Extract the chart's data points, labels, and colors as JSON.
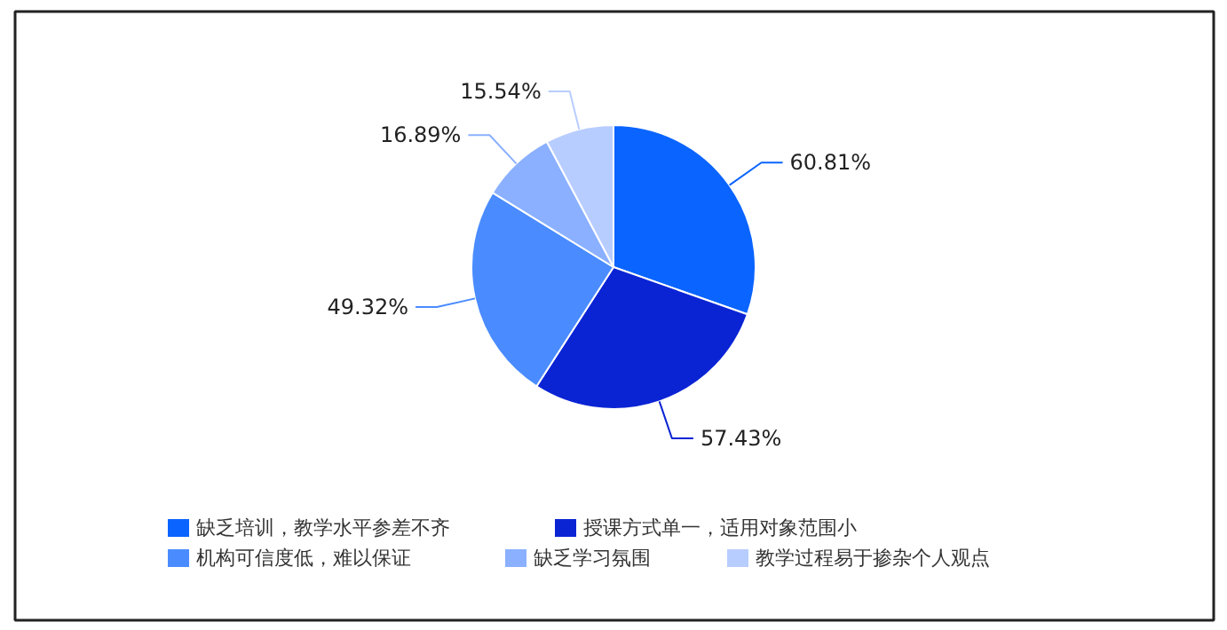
{
  "chart_data": {
    "type": "pie",
    "categories": [
      "缺乏培训，教学水平参差不齐",
      "授课方式单一，适用对象范围小",
      "机构可信度低，难以保证",
      "缺乏学习氛围",
      "教学过程易于掺杂个人观点"
    ],
    "values": [
      60.81,
      57.43,
      49.32,
      16.89,
      15.54
    ],
    "colors": [
      "#0a64ff",
      "#0a24d4",
      "#4a8cff",
      "#8ab0ff",
      "#b8cdff"
    ],
    "value_labels": [
      "60.81%",
      "57.43%",
      "49.32%",
      "16.89%",
      "15.54%"
    ],
    "legend": "bottom"
  }
}
